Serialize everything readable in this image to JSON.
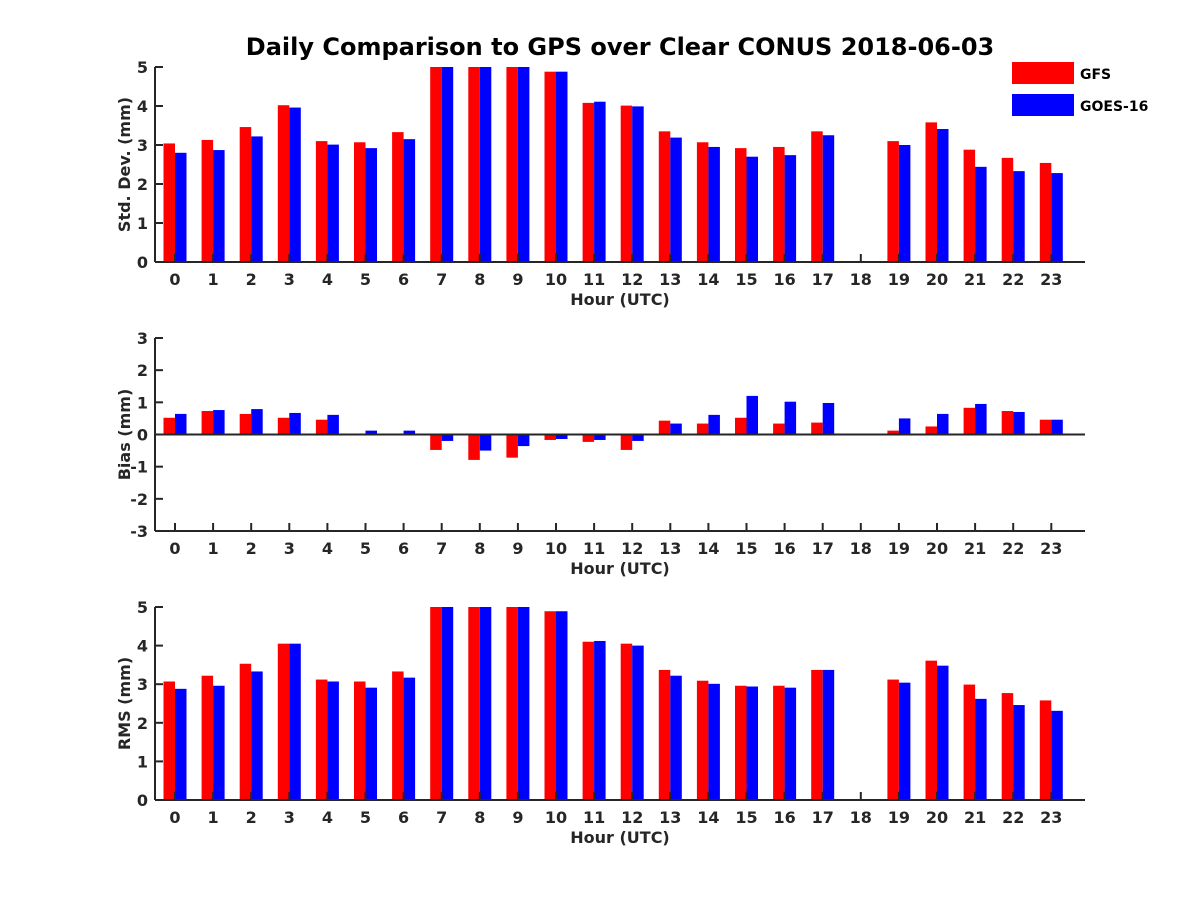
{
  "chart_data": {
    "title": "Daily Comparison to GPS over Clear CONUS 2018-06-03",
    "legend": [
      {
        "name": "GFS",
        "color": "#ff0000"
      },
      {
        "name": "GOES-16",
        "color": "#0000ff"
      }
    ],
    "legend_placement": "top-right",
    "panels": [
      {
        "type": "bar",
        "xlabel": "Hour (UTC)",
        "ylabel": "Std. Dev. (mm)",
        "ylim": [
          0,
          5
        ],
        "yticks": [
          0,
          1,
          2,
          3,
          4,
          5
        ],
        "categories": [
          "0",
          "1",
          "2",
          "3",
          "4",
          "5",
          "6",
          "7",
          "8",
          "9",
          "10",
          "11",
          "12",
          "13",
          "14",
          "15",
          "16",
          "17",
          "18",
          "19",
          "20",
          "21",
          "22",
          "23"
        ],
        "series": [
          {
            "name": "GFS",
            "color": "#ff0000",
            "values": [
              3.04,
              3.13,
              3.46,
              4.02,
              3.1,
              3.07,
              3.33,
              5.0,
              5.0,
              5.0,
              4.88,
              4.08,
              4.01,
              3.35,
              3.07,
              2.92,
              2.95,
              3.35,
              null,
              3.1,
              3.58,
              2.88,
              2.67,
              2.54
            ]
          },
          {
            "name": "GOES-16",
            "color": "#0000ff",
            "values": [
              2.8,
              2.87,
              3.22,
              3.96,
              3.01,
              2.92,
              3.15,
              5.0,
              5.0,
              5.0,
              4.88,
              4.11,
              3.99,
              3.19,
              2.95,
              2.7,
              2.74,
              3.25,
              null,
              3.0,
              3.41,
              2.44,
              2.33,
              2.28
            ]
          }
        ]
      },
      {
        "type": "bar",
        "xlabel": "Hour (UTC)",
        "ylabel": "Bias (mm)",
        "ylim": [
          -3,
          3
        ],
        "yticks": [
          -3,
          -2,
          -1,
          0,
          1,
          2,
          3
        ],
        "categories": [
          "0",
          "1",
          "2",
          "3",
          "4",
          "5",
          "6",
          "7",
          "8",
          "9",
          "10",
          "11",
          "12",
          "13",
          "14",
          "15",
          "16",
          "17",
          "18",
          "19",
          "20",
          "21",
          "22",
          "23"
        ],
        "series": [
          {
            "name": "GFS",
            "color": "#ff0000",
            "values": [
              0.52,
              0.73,
              0.64,
              0.52,
              0.46,
              0.0,
              0.0,
              -0.48,
              -0.79,
              -0.72,
              -0.17,
              -0.23,
              -0.48,
              0.43,
              0.34,
              0.52,
              0.34,
              0.37,
              null,
              0.12,
              0.25,
              0.83,
              0.73,
              0.46
            ]
          },
          {
            "name": "GOES-16",
            "color": "#0000ff",
            "values": [
              0.64,
              0.76,
              0.79,
              0.67,
              0.61,
              0.12,
              0.12,
              -0.2,
              -0.5,
              -0.36,
              -0.14,
              -0.17,
              -0.2,
              0.34,
              0.61,
              1.2,
              1.02,
              0.98,
              null,
              0.5,
              0.64,
              0.95,
              0.7,
              0.46
            ]
          }
        ]
      },
      {
        "type": "bar",
        "xlabel": "Hour (UTC)",
        "ylabel": "RMS (mm)",
        "ylim": [
          0,
          5
        ],
        "yticks": [
          0,
          1,
          2,
          3,
          4,
          5
        ],
        "categories": [
          "0",
          "1",
          "2",
          "3",
          "4",
          "5",
          "6",
          "7",
          "8",
          "9",
          "10",
          "11",
          "12",
          "13",
          "14",
          "15",
          "16",
          "17",
          "18",
          "19",
          "20",
          "21",
          "22",
          "23"
        ],
        "series": [
          {
            "name": "GFS",
            "color": "#ff0000",
            "values": [
              3.07,
              3.22,
              3.53,
              4.05,
              3.12,
              3.07,
              3.33,
              5.0,
              5.0,
              5.0,
              4.89,
              4.1,
              4.05,
              3.37,
              3.09,
              2.96,
              2.96,
              3.37,
              null,
              3.12,
              3.61,
              2.99,
              2.77,
              2.58
            ]
          },
          {
            "name": "GOES-16",
            "color": "#0000ff",
            "values": [
              2.88,
              2.96,
              3.33,
              4.05,
              3.07,
              2.91,
              3.17,
              5.0,
              5.0,
              5.0,
              4.89,
              4.12,
              4.0,
              3.22,
              3.01,
              2.94,
              2.91,
              3.37,
              null,
              3.04,
              3.48,
              2.62,
              2.46,
              2.31
            ]
          }
        ]
      }
    ]
  }
}
